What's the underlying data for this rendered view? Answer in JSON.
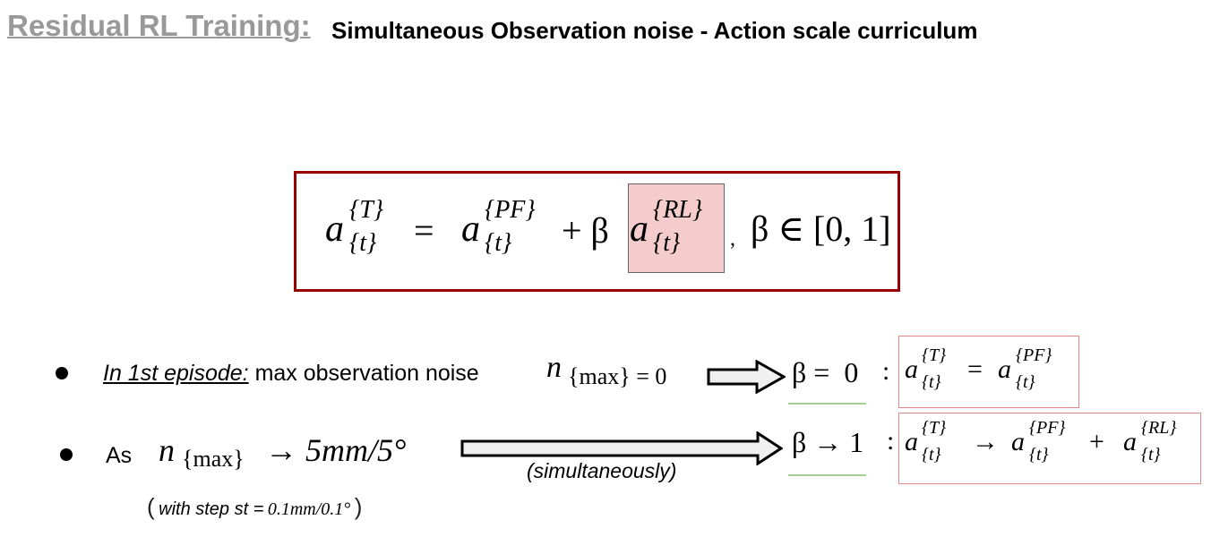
{
  "title": {
    "main": "Residual RL Training:",
    "subtitle": "Simultaneous Observation noise - Action scale curriculum"
  },
  "formula": {
    "a": "a",
    "sup_T": "{T}",
    "sub_t": "{t}",
    "equals": "=",
    "sup_PF": "{PF}",
    "plus_beta": "+ β",
    "sup_RL": "{RL}",
    "comma": ",",
    "beta_range": "β ∈ [0, 1]"
  },
  "bullets": [
    {
      "label_underlined": "In 1st episode:",
      "text": "max observation noise",
      "noise_n": "n",
      "noise_sub": "{max} = 0",
      "beta_condition": "β =  0",
      "colon": ":",
      "eq_a": "a",
      "eq_sup_left": "{T}",
      "eq_sub": "{t}",
      "eq_equals": "=",
      "eq_sup_right": "{PF}"
    },
    {
      "prefix": "As",
      "noise_n": "n",
      "noise_sub": "{max}",
      "noise_target": "→ 5mm/5°",
      "arrow_caption": "(simultaneously)",
      "beta_condition": "β → 1",
      "colon": ":",
      "eq_a": "a",
      "eq_sup_left": "{T}",
      "eq_sub": "{t}",
      "eq_arrow": "→",
      "eq_sup_mid": "{PF}",
      "eq_plus": "+",
      "eq_sup_right": "{RL}",
      "note_open": "(",
      "note_text": "with step st =",
      "note_value": "0.1mm/0.1°",
      "note_close": ")"
    }
  ],
  "colors": {
    "title_gray": "#999999",
    "box_border": "#990000",
    "highlight": "#f4cccc",
    "small_box_border": "#e08a8a",
    "green_underline": "#a9cf96"
  }
}
